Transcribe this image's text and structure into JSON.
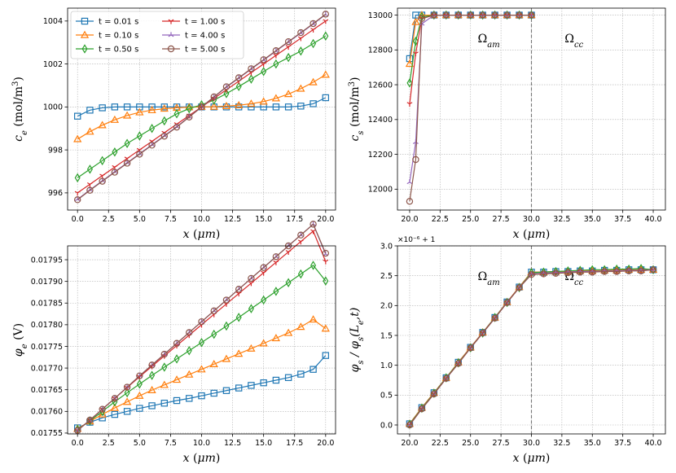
{
  "series_styles": [
    {
      "name": "t = 0.01 s",
      "color": "#1f77b4",
      "marker": "square"
    },
    {
      "name": "t = 0.10 s",
      "color": "#ff7f0e",
      "marker": "triangle-up"
    },
    {
      "name": "t = 0.50 s",
      "color": "#2ca02c",
      "marker": "diamond"
    },
    {
      "name": "t = 1.00 s",
      "color": "#d62728",
      "marker": "tri-down"
    },
    {
      "name": "t = 4.00 s",
      "color": "#9467bd",
      "marker": "tri-up"
    },
    {
      "name": "t = 5.00 s",
      "color": "#8c564b",
      "marker": "circle"
    }
  ],
  "chart_data": [
    {
      "type": "line",
      "panel": "top-left",
      "xlabel": "x (μm)",
      "ylabel": "c_e (mol/m³)",
      "xlim": [
        -0.8,
        20.8
      ],
      "ylim": [
        995.2,
        1004.6
      ],
      "xticks": [
        "0.0",
        "2.5",
        "5.0",
        "7.5",
        "10.0",
        "12.5",
        "15.0",
        "17.5",
        "20.0"
      ],
      "yticks": [
        "996",
        "998",
        "1000",
        "1002",
        "1004"
      ],
      "grid": true,
      "legend": "top-left",
      "x": [
        0,
        1,
        2,
        3,
        4,
        5,
        6,
        7,
        8,
        9,
        10,
        11,
        12,
        13,
        14,
        15,
        16,
        17,
        18,
        19,
        20
      ],
      "series": [
        {
          "name": "t = 0.01 s",
          "values": [
            999.57,
            999.85,
            999.96,
            1000.0,
            1000.0,
            1000.0,
            1000.0,
            1000.0,
            1000.0,
            1000.0,
            1000.0,
            1000.0,
            1000.0,
            1000.0,
            1000.0,
            1000.0,
            1000.0,
            1000.0,
            1000.04,
            1000.15,
            1000.43
          ]
        },
        {
          "name": "t = 0.10 s",
          "values": [
            998.5,
            998.85,
            999.15,
            999.4,
            999.6,
            999.75,
            999.85,
            999.92,
            999.96,
            999.99,
            1000.0,
            1000.01,
            1000.04,
            1000.08,
            1000.15,
            1000.25,
            1000.4,
            1000.6,
            1000.85,
            1001.15,
            1001.5
          ]
        },
        {
          "name": "t = 0.50 s",
          "values": [
            996.7,
            997.1,
            997.5,
            997.9,
            998.3,
            998.65,
            999.0,
            999.35,
            999.68,
            999.92,
            1000.1,
            1000.32,
            1000.62,
            1000.95,
            1001.3,
            1001.65,
            1002.0,
            1002.3,
            1002.6,
            1002.95,
            1003.3
          ]
        },
        {
          "name": "t = 1.00 s",
          "values": [
            996.0,
            996.4,
            996.8,
            997.2,
            997.6,
            998.0,
            998.4,
            998.8,
            999.2,
            999.6,
            1000.0,
            1000.4,
            1000.8,
            1001.2,
            1001.6,
            1002.0,
            1002.4,
            1002.8,
            1003.2,
            1003.6,
            1004.0
          ]
        },
        {
          "name": "t = 4.00 s",
          "values": [
            995.7,
            996.14,
            996.56,
            996.98,
            997.4,
            997.82,
            998.24,
            998.66,
            999.08,
            999.54,
            1000.0,
            1000.46,
            1000.92,
            1001.34,
            1001.76,
            1002.18,
            1002.6,
            1003.02,
            1003.44,
            1003.86,
            1004.3
          ]
        },
        {
          "name": "t = 5.00 s",
          "values": [
            995.68,
            996.12,
            996.54,
            996.96,
            997.38,
            997.8,
            998.22,
            998.64,
            999.06,
            999.53,
            1000.0,
            1000.47,
            1000.94,
            1001.36,
            1001.78,
            1002.2,
            1002.62,
            1003.04,
            1003.46,
            1003.88,
            1004.32
          ]
        }
      ]
    },
    {
      "type": "line",
      "panel": "top-right",
      "xlabel": "x (μm)",
      "ylabel": "c_s (mol/m³)",
      "xlim": [
        19.0,
        41.0
      ],
      "ylim": [
        11880,
        13040
      ],
      "xticks": [
        "20.0",
        "22.5",
        "25.0",
        "27.5",
        "30.0",
        "32.5",
        "35.0",
        "37.5",
        "40.0"
      ],
      "yticks": [
        "12000",
        "12200",
        "12400",
        "12600",
        "12800",
        "13000"
      ],
      "grid": true,
      "vline_x": 30,
      "annotations": [
        "Ω_am",
        "Ω_cc"
      ],
      "x": [
        20,
        20.5,
        21,
        22,
        23,
        24,
        25,
        26,
        27,
        28,
        29,
        30
      ],
      "series": [
        {
          "name": "t = 0.01 s",
          "values": [
            12750,
            13000,
            13000,
            13000,
            13000,
            13000,
            13000,
            13000,
            13000,
            13000,
            13000,
            13000
          ]
        },
        {
          "name": "t = 0.10 s",
          "values": [
            12720,
            12960,
            13000,
            13000,
            13000,
            13000,
            13000,
            13000,
            13000,
            13000,
            13000,
            13000
          ]
        },
        {
          "name": "t = 0.50 s",
          "values": [
            12610,
            12850,
            12990,
            13000,
            13000,
            13000,
            13000,
            13000,
            13000,
            13000,
            13000,
            13000
          ]
        },
        {
          "name": "t = 1.00 s",
          "values": [
            12490,
            12780,
            12980,
            13000,
            13000,
            13000,
            13000,
            13000,
            13000,
            13000,
            13000,
            13000
          ]
        },
        {
          "name": "t = 4.00 s",
          "values": [
            12040,
            12270,
            12950,
            13000,
            13000,
            13000,
            13000,
            13000,
            13000,
            13000,
            13000,
            13000
          ]
        },
        {
          "name": "t = 5.00 s",
          "values": [
            11930,
            12170,
            12980,
            13000,
            13000,
            13000,
            13000,
            13000,
            13000,
            13000,
            13000,
            13000
          ]
        }
      ]
    },
    {
      "type": "line",
      "panel": "bottom-left",
      "xlabel": "x (μm)",
      "ylabel": "φ_e (V)",
      "xlim": [
        -0.8,
        20.8
      ],
      "ylim": [
        0.017548,
        0.017982
      ],
      "xticks": [
        "0.0",
        "2.5",
        "5.0",
        "7.5",
        "10.0",
        "12.5",
        "15.0",
        "17.5",
        "20.0"
      ],
      "yticks": [
        "0.01755",
        "0.01760",
        "0.01765",
        "0.01770",
        "0.01775",
        "0.01780",
        "0.01785",
        "0.01790",
        "0.01795"
      ],
      "grid": true,
      "x": [
        0,
        1,
        2,
        3,
        4,
        5,
        6,
        7,
        8,
        9,
        10,
        11,
        12,
        13,
        14,
        15,
        16,
        17,
        18,
        19,
        20
      ],
      "series": [
        {
          "name": "t = 0.01 s",
          "values": [
            0.017562,
            0.017575,
            0.017585,
            0.017593,
            0.0176,
            0.017607,
            0.017613,
            0.017619,
            0.017625,
            0.01763,
            0.017636,
            0.017642,
            0.017648,
            0.017654,
            0.01766,
            0.017666,
            0.017672,
            0.017678,
            0.017686,
            0.017697,
            0.017729
          ]
        },
        {
          "name": "t = 0.10 s",
          "values": [
            0.01756,
            0.017577,
            0.017593,
            0.017608,
            0.017622,
            0.017636,
            0.017649,
            0.017661,
            0.017673,
            0.017685,
            0.017697,
            0.017709,
            0.017721,
            0.017733,
            0.017745,
            0.017757,
            0.017769,
            0.017781,
            0.017795,
            0.017812,
            0.017791
          ]
        },
        {
          "name": "t = 0.50 s",
          "values": [
            0.017558,
            0.017578,
            0.0176,
            0.017622,
            0.017643,
            0.017663,
            0.017683,
            0.017702,
            0.017721,
            0.01774,
            0.017759,
            0.017778,
            0.017797,
            0.017817,
            0.017837,
            0.017857,
            0.017877,
            0.017897,
            0.017917,
            0.017937,
            0.017901
          ]
        },
        {
          "name": "t = 1.00 s",
          "values": [
            0.017556,
            0.01758,
            0.017605,
            0.01763,
            0.017655,
            0.01768,
            0.017704,
            0.017728,
            0.017752,
            0.017776,
            0.0178,
            0.017824,
            0.017848,
            0.017872,
            0.017896,
            0.01792,
            0.017944,
            0.017968,
            0.017992,
            0.018016,
            0.017946
          ]
        },
        {
          "name": "t = 4.00 s",
          "values": [
            0.017556,
            0.01758,
            0.017605,
            0.01763,
            0.017656,
            0.017682,
            0.017707,
            0.017732,
            0.017757,
            0.017782,
            0.017807,
            0.017832,
            0.017857,
            0.017882,
            0.017907,
            0.017932,
            0.017957,
            0.017982,
            0.018007,
            0.018032,
            0.017963
          ]
        },
        {
          "name": "t = 5.00 s",
          "values": [
            0.017556,
            0.01758,
            0.017605,
            0.01763,
            0.017656,
            0.017682,
            0.017707,
            0.017732,
            0.017757,
            0.017782,
            0.017807,
            0.017832,
            0.017857,
            0.017882,
            0.017907,
            0.017932,
            0.017957,
            0.017982,
            0.018007,
            0.018032,
            0.017965
          ]
        }
      ]
    },
    {
      "type": "line",
      "panel": "bottom-right",
      "xlabel": "x (μm)",
      "ylabel": "φ_s / φ_s(L_e, t)",
      "offset_text": "×10⁻⁶ + 1",
      "xlim": [
        19.0,
        41.0
      ],
      "ylim": [
        -0.15,
        3.0
      ],
      "xticks": [
        "20.0",
        "22.5",
        "25.0",
        "27.5",
        "30.0",
        "32.5",
        "35.0",
        "37.5",
        "40.0"
      ],
      "yticks": [
        "0.0",
        "0.5",
        "1.0",
        "1.5",
        "2.0",
        "2.5",
        "3.0"
      ],
      "grid": true,
      "vline_x": 30,
      "annotations": [
        "Ω_am",
        "Ω_cc"
      ],
      "x": [
        20,
        21,
        22,
        23,
        24,
        25,
        26,
        27,
        28,
        29,
        30,
        31,
        32,
        33,
        34,
        35,
        36,
        37,
        38,
        39,
        40
      ],
      "series": [
        {
          "name": "t = 0.01 s",
          "values": [
            0.02,
            0.29,
            0.54,
            0.79,
            1.05,
            1.3,
            1.55,
            1.8,
            2.06,
            2.31,
            2.56,
            2.56,
            2.57,
            2.57,
            2.58,
            2.58,
            2.59,
            2.59,
            2.6,
            2.6,
            2.6
          ]
        },
        {
          "name": "t = 0.10 s",
          "values": [
            0.02,
            0.29,
            0.54,
            0.79,
            1.05,
            1.3,
            1.55,
            1.8,
            2.06,
            2.31,
            2.56,
            2.56,
            2.57,
            2.57,
            2.58,
            2.58,
            2.59,
            2.59,
            2.6,
            2.6,
            2.6
          ]
        },
        {
          "name": "t = 0.50 s",
          "values": [
            0.01,
            0.28,
            0.53,
            0.79,
            1.04,
            1.29,
            1.54,
            1.8,
            2.05,
            2.3,
            2.55,
            2.56,
            2.57,
            2.58,
            2.59,
            2.6,
            2.6,
            2.61,
            2.61,
            2.62,
            2.6
          ]
        },
        {
          "name": "t = 1.00 s",
          "values": [
            0.0,
            0.27,
            0.52,
            0.78,
            1.03,
            1.29,
            1.54,
            1.79,
            2.05,
            2.3,
            2.53,
            2.54,
            2.55,
            2.56,
            2.57,
            2.57,
            2.58,
            2.58,
            2.59,
            2.59,
            2.6
          ]
        },
        {
          "name": "t = 4.00 s",
          "values": [
            0.0,
            0.27,
            0.52,
            0.78,
            1.03,
            1.29,
            1.54,
            1.79,
            2.05,
            2.3,
            2.53,
            2.54,
            2.55,
            2.56,
            2.57,
            2.57,
            2.58,
            2.58,
            2.59,
            2.59,
            2.6
          ]
        },
        {
          "name": "t = 5.00 s",
          "values": [
            0.0,
            0.27,
            0.52,
            0.78,
            1.03,
            1.29,
            1.54,
            1.79,
            2.05,
            2.3,
            2.52,
            2.53,
            2.54,
            2.55,
            2.56,
            2.56,
            2.57,
            2.57,
            2.58,
            2.58,
            2.6
          ]
        }
      ]
    }
  ]
}
